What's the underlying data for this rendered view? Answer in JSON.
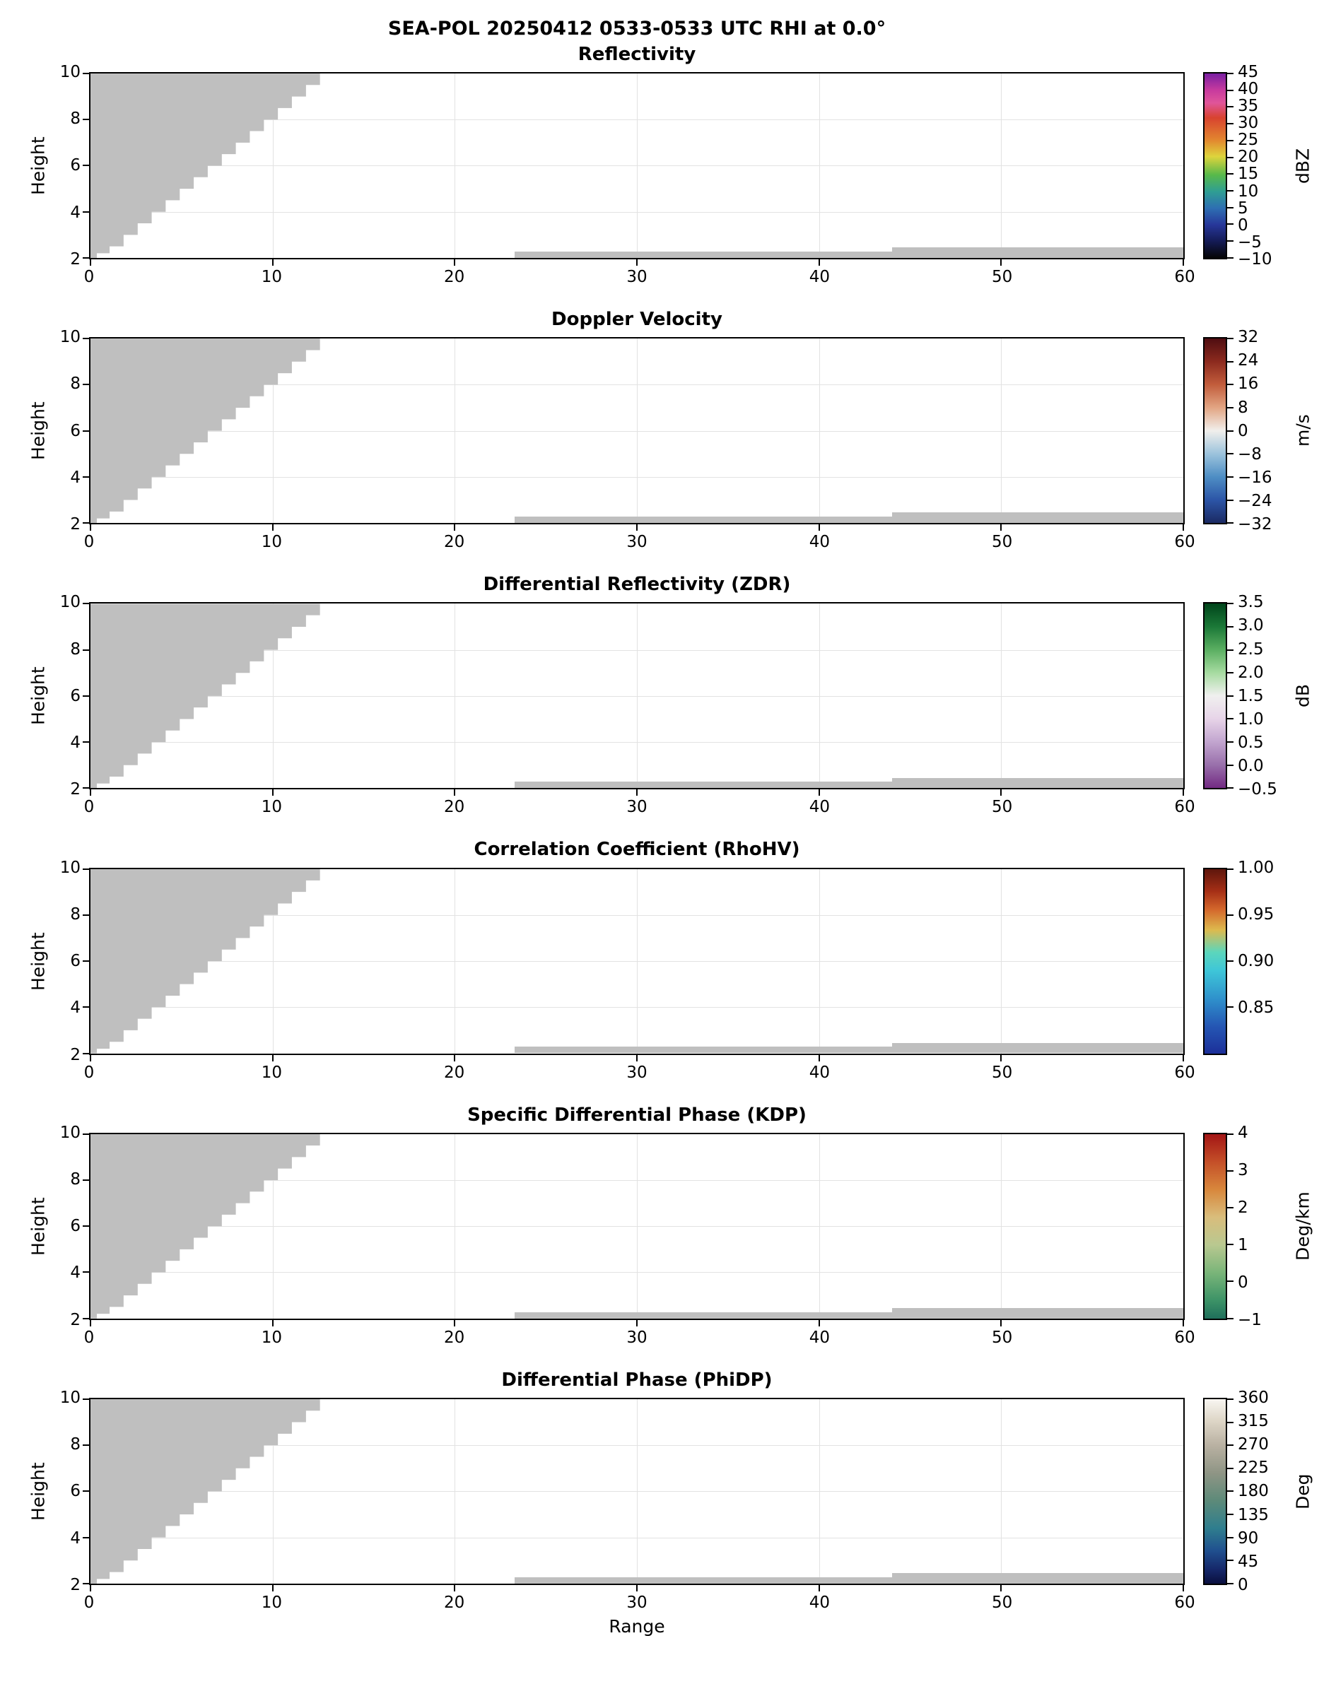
{
  "figure_title": "SEA-POL 20250412 0533-0533 UTC RHI at 0.0°",
  "mask_color": "#bfbfbf",
  "grid_color": "#e2e2e2",
  "axis_color": "#000000",
  "chart_data": {
    "type": "heatmap",
    "description": "Six-panel SEA-POL radar RHI quicklook. No echo values are plotted; every panel shows only gray masked/no-data regions: a stepped wedge above the scanned sector in the upper left and thin low-level strips near the bottom right.",
    "x_axis": {
      "label": "Range",
      "range": [
        0,
        60
      ],
      "ticks": [
        0,
        10,
        20,
        30,
        40,
        50,
        60
      ]
    },
    "y_axis": {
      "label": "Height",
      "range": [
        2,
        10
      ],
      "ticks": [
        2,
        4,
        6,
        8,
        10
      ]
    },
    "masked_regions": {
      "wedge_polygon": [
        [
          0,
          10
        ],
        [
          12.6,
          10
        ],
        [
          12.6,
          9.5
        ],
        [
          11.83,
          9.5
        ],
        [
          11.83,
          9
        ],
        [
          11.06,
          9
        ],
        [
          11.06,
          8.5
        ],
        [
          10.29,
          8.5
        ],
        [
          10.29,
          8
        ],
        [
          9.52,
          8
        ],
        [
          9.52,
          7.5
        ],
        [
          8.75,
          7.5
        ],
        [
          8.75,
          7
        ],
        [
          7.98,
          7
        ],
        [
          7.98,
          6.5
        ],
        [
          7.21,
          6.5
        ],
        [
          7.21,
          6
        ],
        [
          6.44,
          6
        ],
        [
          6.44,
          5.5
        ],
        [
          5.67,
          5.5
        ],
        [
          5.67,
          5
        ],
        [
          4.9,
          5
        ],
        [
          4.9,
          4.5
        ],
        [
          4.13,
          4.5
        ],
        [
          4.13,
          4
        ],
        [
          3.36,
          4
        ],
        [
          3.36,
          3.5
        ],
        [
          2.59,
          3.5
        ],
        [
          2.59,
          3
        ],
        [
          1.82,
          3
        ],
        [
          1.82,
          2.5
        ],
        [
          1.05,
          2.5
        ],
        [
          1.05,
          2.2
        ],
        [
          0.35,
          2.2
        ],
        [
          0.35,
          2
        ],
        [
          0,
          2
        ]
      ],
      "low_level_strips": [
        {
          "x": [
            23.3,
            44
          ],
          "y": [
            2.0,
            2.28
          ]
        },
        {
          "x": [
            44,
            60
          ],
          "y": [
            2.0,
            2.45
          ]
        }
      ]
    },
    "panels": [
      {
        "title": "Reflectivity",
        "unit": "dBZ",
        "cbar_range": [
          -10,
          45
        ],
        "cbar_ticks": [
          {
            "label": "45",
            "value": 45
          },
          {
            "label": "40",
            "value": 40
          },
          {
            "label": "35",
            "value": 35
          },
          {
            "label": "30",
            "value": 30
          },
          {
            "label": "25",
            "value": 25
          },
          {
            "label": "20",
            "value": 20
          },
          {
            "label": "15",
            "value": 15
          },
          {
            "label": "10",
            "value": 10
          },
          {
            "label": "5",
            "value": 5
          },
          {
            "label": "0",
            "value": 0
          },
          {
            "label": "−5",
            "value": -5
          },
          {
            "label": "−10",
            "value": -10
          }
        ],
        "cbar_gradient": [
          {
            "pos": 0.0,
            "color": "#7a1fa2"
          },
          {
            "pos": 0.09,
            "color": "#c73a9e"
          },
          {
            "pos": 0.16,
            "color": "#e0559a"
          },
          {
            "pos": 0.24,
            "color": "#d8432f"
          },
          {
            "pos": 0.36,
            "color": "#e2862f"
          },
          {
            "pos": 0.45,
            "color": "#ded43c"
          },
          {
            "pos": 0.55,
            "color": "#58b94a"
          },
          {
            "pos": 0.64,
            "color": "#2f9e93"
          },
          {
            "pos": 0.73,
            "color": "#2e6fb2"
          },
          {
            "pos": 0.82,
            "color": "#27379a"
          },
          {
            "pos": 0.91,
            "color": "#141b55"
          },
          {
            "pos": 1.0,
            "color": "#050505"
          }
        ]
      },
      {
        "title": "Doppler Velocity",
        "unit": "m/s",
        "cbar_range": [
          -32,
          32
        ],
        "cbar_ticks": [
          {
            "label": "32",
            "value": 32
          },
          {
            "label": "24",
            "value": 24
          },
          {
            "label": "16",
            "value": 16
          },
          {
            "label": "8",
            "value": 8
          },
          {
            "label": "0",
            "value": 0
          },
          {
            "label": "−8",
            "value": -8
          },
          {
            "label": "−16",
            "value": -16
          },
          {
            "label": "−24",
            "value": -24
          },
          {
            "label": "−32",
            "value": -32
          }
        ],
        "cbar_gradient": [
          {
            "pos": 0.0,
            "color": "#4f0d11"
          },
          {
            "pos": 0.125,
            "color": "#8c2a1e"
          },
          {
            "pos": 0.25,
            "color": "#c25d3c"
          },
          {
            "pos": 0.375,
            "color": "#e2a583"
          },
          {
            "pos": 0.5,
            "color": "#f1efec"
          },
          {
            "pos": 0.625,
            "color": "#9cc3dc"
          },
          {
            "pos": 0.75,
            "color": "#4e8ec4"
          },
          {
            "pos": 0.875,
            "color": "#2c55a7"
          },
          {
            "pos": 1.0,
            "color": "#1b2a63"
          }
        ]
      },
      {
        "title": "Differential Reflectivity (ZDR)",
        "unit": "dB",
        "cbar_range": [
          -0.5,
          3.5
        ],
        "cbar_ticks": [
          {
            "label": "3.5",
            "value": 3.5
          },
          {
            "label": "3.0",
            "value": 3.0
          },
          {
            "label": "2.5",
            "value": 2.5
          },
          {
            "label": "2.0",
            "value": 2.0
          },
          {
            "label": "1.5",
            "value": 1.5
          },
          {
            "label": "1.0",
            "value": 1.0
          },
          {
            "label": "0.5",
            "value": 0.5
          },
          {
            "label": "0.0",
            "value": 0.0
          },
          {
            "label": "−0.5",
            "value": -0.5
          }
        ],
        "cbar_gradient": [
          {
            "pos": 0.0,
            "color": "#00441b"
          },
          {
            "pos": 0.125,
            "color": "#1b7837"
          },
          {
            "pos": 0.25,
            "color": "#5aae61"
          },
          {
            "pos": 0.375,
            "color": "#a6dba0"
          },
          {
            "pos": 0.5,
            "color": "#f0f0ef"
          },
          {
            "pos": 0.625,
            "color": "#e7d4e8"
          },
          {
            "pos": 0.75,
            "color": "#c2a5cf"
          },
          {
            "pos": 0.875,
            "color": "#9970ab"
          },
          {
            "pos": 1.0,
            "color": "#732a83"
          }
        ]
      },
      {
        "title": "Correlation Coefficient (RhoHV)",
        "unit": "",
        "cbar_range": [
          0.8,
          1.0
        ],
        "cbar_ticks": [
          {
            "label": "1.00",
            "value": 1.0
          },
          {
            "label": "0.95",
            "value": 0.95
          },
          {
            "label": "0.90",
            "value": 0.9
          },
          {
            "label": "0.85",
            "value": 0.85
          }
        ],
        "cbar_gradient": [
          {
            "pos": 0.0,
            "color": "#5e160c"
          },
          {
            "pos": 0.12,
            "color": "#a62f16"
          },
          {
            "pos": 0.22,
            "color": "#d4682c"
          },
          {
            "pos": 0.33,
            "color": "#ddba4e"
          },
          {
            "pos": 0.45,
            "color": "#5cd6bc"
          },
          {
            "pos": 0.55,
            "color": "#3ec6d8"
          },
          {
            "pos": 0.7,
            "color": "#2f92cc"
          },
          {
            "pos": 0.85,
            "color": "#2557b4"
          },
          {
            "pos": 1.0,
            "color": "#1c2f99"
          }
        ]
      },
      {
        "title": "Specific Differential Phase (KDP)",
        "unit": "Deg/km",
        "cbar_range": [
          -1,
          4
        ],
        "cbar_ticks": [
          {
            "label": "4",
            "value": 4
          },
          {
            "label": "3",
            "value": 3
          },
          {
            "label": "2",
            "value": 2
          },
          {
            "label": "1",
            "value": 1
          },
          {
            "label": "0",
            "value": 0
          },
          {
            "label": "−1",
            "value": -1
          }
        ],
        "cbar_gradient": [
          {
            "pos": 0.0,
            "color": "#a31515"
          },
          {
            "pos": 0.15,
            "color": "#c44f28"
          },
          {
            "pos": 0.3,
            "color": "#d8873c"
          },
          {
            "pos": 0.45,
            "color": "#d9bd7c"
          },
          {
            "pos": 0.6,
            "color": "#b9c890"
          },
          {
            "pos": 0.75,
            "color": "#7ab579"
          },
          {
            "pos": 0.9,
            "color": "#3d9367"
          },
          {
            "pos": 1.0,
            "color": "#1f6f5b"
          }
        ]
      },
      {
        "title": "Differential Phase (PhiDP)",
        "unit": "Deg",
        "cbar_range": [
          0,
          360
        ],
        "cbar_ticks": [
          {
            "label": "360",
            "value": 360
          },
          {
            "label": "315",
            "value": 315
          },
          {
            "label": "270",
            "value": 270
          },
          {
            "label": "225",
            "value": 225
          },
          {
            "label": "180",
            "value": 180
          },
          {
            "label": "135",
            "value": 135
          },
          {
            "label": "90",
            "value": 90
          },
          {
            "label": "45",
            "value": 45
          },
          {
            "label": "0",
            "value": 0
          }
        ],
        "cbar_gradient": [
          {
            "pos": 0.0,
            "color": "#f8f6f1"
          },
          {
            "pos": 0.12,
            "color": "#ddd5c6"
          },
          {
            "pos": 0.25,
            "color": "#b9b1a2"
          },
          {
            "pos": 0.4,
            "color": "#8f9585"
          },
          {
            "pos": 0.55,
            "color": "#5d8a79"
          },
          {
            "pos": 0.7,
            "color": "#2f7e8e"
          },
          {
            "pos": 0.82,
            "color": "#20508f"
          },
          {
            "pos": 0.92,
            "color": "#16296b"
          },
          {
            "pos": 1.0,
            "color": "#0a0f3e"
          }
        ]
      }
    ]
  }
}
